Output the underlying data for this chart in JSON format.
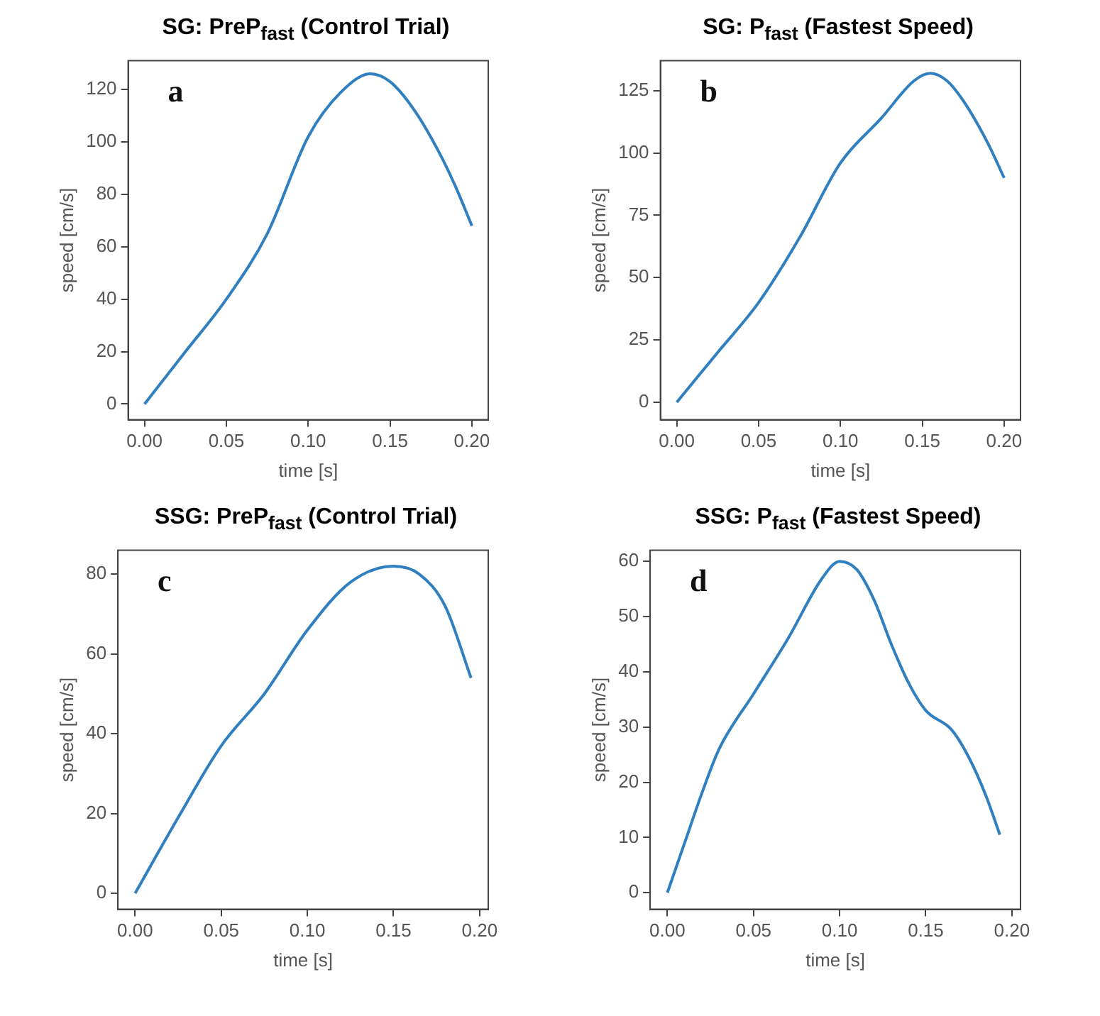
{
  "chart_data": [
    {
      "type": "line",
      "title": "SG: PreP$_{fast}$ (Control Trial)",
      "xlabel": "time [s]",
      "ylabel": "speed [cm/s]",
      "annotations": [
        "a"
      ],
      "grid": false,
      "legend": false,
      "marker": "none",
      "line_style": "solid",
      "xlim": [
        -0.01,
        0.21
      ],
      "ylim": [
        -6,
        131
      ],
      "xticks": [
        {
          "value": 0,
          "label": "0.00"
        },
        {
          "value": 0.05,
          "label": "0.05"
        },
        {
          "value": 0.1,
          "label": "0.10"
        },
        {
          "value": 0.15,
          "label": "0.15"
        },
        {
          "value": 0.2,
          "label": "0.20"
        }
      ],
      "yticks": [
        0,
        20,
        40,
        60,
        80,
        100,
        120
      ],
      "series": [
        {
          "color": "#2f7fc1",
          "x": [
            0,
            0.025,
            0.05,
            0.075,
            0.1,
            0.12,
            0.138,
            0.15,
            0.165,
            0.18,
            0.19,
            0.2
          ],
          "values": [
            0,
            20,
            40,
            65,
            102,
            119,
            126,
            123,
            112,
            96,
            83,
            68
          ]
        }
      ]
    },
    {
      "type": "line",
      "title": "SG: P$_{fast}$ (Fastest Speed)",
      "xlabel": "time [s]",
      "ylabel": "speed [cm/s]",
      "annotations": [
        "b"
      ],
      "grid": false,
      "legend": false,
      "marker": "none",
      "line_style": "solid",
      "xlim": [
        -0.01,
        0.21
      ],
      "ylim": [
        -7,
        137
      ],
      "xticks": [
        {
          "value": 0,
          "label": "0.00"
        },
        {
          "value": 0.05,
          "label": "0.05"
        },
        {
          "value": 0.1,
          "label": "0.10"
        },
        {
          "value": 0.15,
          "label": "0.15"
        },
        {
          "value": 0.2,
          "label": "0.20"
        }
      ],
      "yticks": [
        0,
        25,
        50,
        75,
        100,
        125
      ],
      "series": [
        {
          "color": "#2f7fc1",
          "x": [
            0,
            0.025,
            0.05,
            0.075,
            0.1,
            0.125,
            0.145,
            0.155,
            0.165,
            0.175,
            0.19,
            0.2
          ],
          "values": [
            0,
            20,
            40,
            66,
            96,
            114,
            129,
            132,
            129,
            121,
            104,
            90
          ]
        }
      ]
    },
    {
      "type": "line",
      "title": "SSG: PreP$_{fast}$ (Control Trial)",
      "xlabel": "time [s]",
      "ylabel": "speed [cm/s]",
      "annotations": [
        "c"
      ],
      "grid": false,
      "legend": false,
      "marker": "none",
      "line_style": "solid",
      "xlim": [
        -0.01,
        0.205
      ],
      "ylim": [
        -4,
        86
      ],
      "xticks": [
        {
          "value": 0,
          "label": "0.00"
        },
        {
          "value": 0.05,
          "label": "0.05"
        },
        {
          "value": 0.1,
          "label": "0.10"
        },
        {
          "value": 0.15,
          "label": "0.15"
        },
        {
          "value": 0.2,
          "label": "0.20"
        }
      ],
      "yticks": [
        0,
        20,
        40,
        60,
        80
      ],
      "series": [
        {
          "color": "#2f7fc1",
          "x": [
            0,
            0.025,
            0.05,
            0.075,
            0.1,
            0.125,
            0.15,
            0.165,
            0.18,
            0.195
          ],
          "values": [
            0,
            19,
            37,
            50,
            66,
            78,
            82,
            80,
            72,
            54
          ]
        }
      ]
    },
    {
      "type": "line",
      "title": "SSG: P$_{fast}$ (Fastest Speed)",
      "xlabel": "time [s]",
      "ylabel": "speed [cm/s]",
      "annotations": [
        "d"
      ],
      "grid": false,
      "legend": false,
      "marker": "none",
      "line_style": "solid",
      "xlim": [
        -0.01,
        0.205
      ],
      "ylim": [
        -3,
        62
      ],
      "xticks": [
        {
          "value": 0,
          "label": "0.00"
        },
        {
          "value": 0.05,
          "label": "0.05"
        },
        {
          "value": 0.1,
          "label": "0.10"
        },
        {
          "value": 0.15,
          "label": "0.15"
        },
        {
          "value": 0.2,
          "label": "0.20"
        }
      ],
      "yticks": [
        0,
        10,
        20,
        30,
        40,
        50,
        60
      ],
      "series": [
        {
          "color": "#2f7fc1",
          "x": [
            0,
            0.01,
            0.02,
            0.03,
            0.05,
            0.07,
            0.09,
            0.1,
            0.11,
            0.12,
            0.13,
            0.14,
            0.15,
            0.165,
            0.175,
            0.185,
            0.193
          ],
          "values": [
            0,
            9,
            18,
            26,
            36,
            46,
            57,
            60,
            58.5,
            53,
            45,
            38,
            33,
            29.5,
            24.5,
            17.5,
            10.5
          ]
        }
      ]
    }
  ]
}
